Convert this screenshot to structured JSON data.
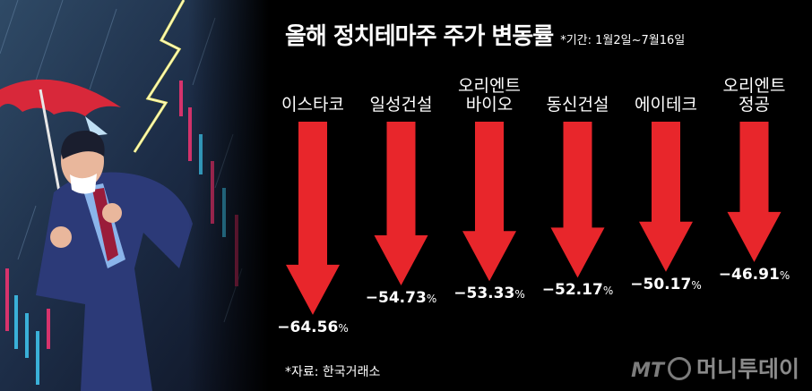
{
  "title": "올해 정치테마주 주가 변동률",
  "period": "*기간: 1월2일~7월16일",
  "source": "*자료: 한국거래소",
  "logo": {
    "mt": "MT",
    "name": "머니투데이"
  },
  "colors": {
    "arrow": "#e8262b",
    "background": "#000000",
    "text": "#ffffff"
  },
  "chart_data": {
    "type": "bar",
    "orientation": "down-arrows",
    "categories": [
      "이스타코",
      "일성건설",
      "오리엔트\n바이오",
      "동신건설",
      "에이테크",
      "오리엔트\n정공"
    ],
    "values": [
      -64.56,
      -54.73,
      -53.33,
      -52.17,
      -50.17,
      -46.91
    ],
    "value_labels": [
      "−64.56",
      "−54.73",
      "−53.33",
      "−52.17",
      "−50.17",
      "−46.91"
    ],
    "unit": "%",
    "ylim": [
      -70,
      0
    ]
  }
}
